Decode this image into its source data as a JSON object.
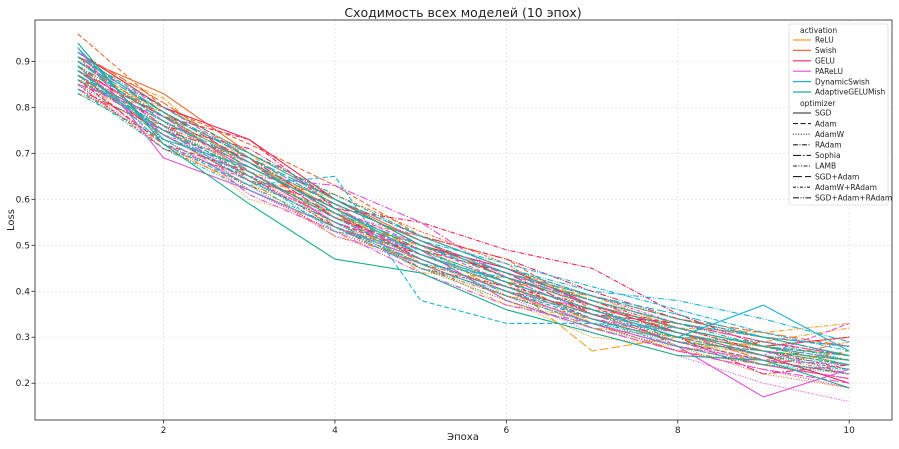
{
  "chart_data": {
    "type": "line",
    "title": "Сходимость всех моделей (10 эпох)",
    "xlabel": "Эпоха",
    "ylabel": "Loss",
    "xlim": [
      0.5,
      10.5
    ],
    "ylim": [
      0.12,
      0.99
    ],
    "xticks": [
      2,
      4,
      6,
      8,
      10
    ],
    "yticks": [
      0.2,
      0.3,
      0.4,
      0.5,
      0.6,
      0.7,
      0.8,
      0.9
    ],
    "grid": true,
    "legend_position": "top-right",
    "x": [
      1,
      2,
      3,
      4,
      5,
      6,
      7,
      8,
      9,
      10
    ],
    "legend": {
      "activation_title": "activation",
      "activations": [
        {
          "name": "ReLU",
          "color": "#f2a12b"
        },
        {
          "name": "Swish",
          "color": "#f26b2e"
        },
        {
          "name": "GELU",
          "color": "#f0285a"
        },
        {
          "name": "PAReLU",
          "color": "#e64fd8"
        },
        {
          "name": "DynamicSwish",
          "color": "#1fb4d6"
        },
        {
          "name": "AdaptiveGELUMish",
          "color": "#1aaf8c"
        }
      ],
      "optimizer_title": "optimizer",
      "optimizers": [
        {
          "name": "SGD",
          "dash": "solid"
        },
        {
          "name": "Adam",
          "dash": "dashed"
        },
        {
          "name": "AdamW",
          "dash": "dotted"
        },
        {
          "name": "RAdam",
          "dash": "dashdot"
        },
        {
          "name": "Sophia",
          "dash": "longdashdot"
        },
        {
          "name": "LAMB",
          "dash": "dashdotdot"
        },
        {
          "name": "SGD+Adam",
          "dash": "longdash"
        },
        {
          "name": "AdamW+RAdam",
          "dash": "dashdotted2"
        },
        {
          "name": "SGD+Adam+RAdam",
          "dash": "dashdotdot2"
        }
      ]
    },
    "series": [
      {
        "activation": "ReLU",
        "optimizer": "SGD",
        "values": [
          0.88,
          0.78,
          0.68,
          0.58,
          0.48,
          0.41,
          0.35,
          0.31,
          0.27,
          0.25
        ]
      },
      {
        "activation": "ReLU",
        "optimizer": "Adam",
        "values": [
          0.86,
          0.8,
          0.7,
          0.56,
          0.52,
          0.45,
          0.38,
          0.33,
          0.3,
          0.28
        ]
      },
      {
        "activation": "ReLU",
        "optimizer": "AdamW",
        "values": [
          0.85,
          0.76,
          0.6,
          0.55,
          0.45,
          0.38,
          0.3,
          0.28,
          0.25,
          0.22
        ]
      },
      {
        "activation": "ReLU",
        "optimizer": "RAdam",
        "values": [
          0.9,
          0.82,
          0.66,
          0.6,
          0.5,
          0.44,
          0.39,
          0.32,
          0.31,
          0.33
        ]
      },
      {
        "activation": "ReLU",
        "optimizer": "Sophia",
        "values": [
          0.87,
          0.74,
          0.64,
          0.52,
          0.47,
          0.4,
          0.32,
          0.3,
          0.28,
          0.24
        ]
      },
      {
        "activation": "ReLU",
        "optimizer": "LAMB",
        "values": [
          0.84,
          0.72,
          0.62,
          0.54,
          0.46,
          0.37,
          0.34,
          0.29,
          0.26,
          0.2
        ]
      },
      {
        "activation": "ReLU",
        "optimizer": "SGD+Adam",
        "values": [
          0.89,
          0.79,
          0.65,
          0.57,
          0.49,
          0.42,
          0.27,
          0.3,
          0.24,
          0.27
        ]
      },
      {
        "activation": "ReLU",
        "optimizer": "AdamW+RAdam",
        "values": [
          0.86,
          0.77,
          0.69,
          0.53,
          0.5,
          0.39,
          0.36,
          0.3,
          0.28,
          0.26
        ]
      },
      {
        "activation": "ReLU",
        "optimizer": "SGD+Adam+RAdam",
        "values": [
          0.88,
          0.75,
          0.67,
          0.58,
          0.44,
          0.43,
          0.33,
          0.27,
          0.29,
          0.32
        ]
      },
      {
        "activation": "Swish",
        "optimizer": "SGD",
        "values": [
          0.91,
          0.83,
          0.7,
          0.6,
          0.51,
          0.43,
          0.37,
          0.32,
          0.28,
          0.3
        ]
      },
      {
        "activation": "Swish",
        "optimizer": "Adam",
        "values": [
          0.96,
          0.8,
          0.72,
          0.63,
          0.52,
          0.47,
          0.36,
          0.33,
          0.3,
          0.26
        ]
      },
      {
        "activation": "Swish",
        "optimizer": "AdamW",
        "values": [
          0.88,
          0.74,
          0.65,
          0.55,
          0.47,
          0.4,
          0.33,
          0.28,
          0.22,
          0.19
        ]
      },
      {
        "activation": "Swish",
        "optimizer": "RAdam",
        "values": [
          0.83,
          0.76,
          0.68,
          0.59,
          0.46,
          0.41,
          0.35,
          0.29,
          0.27,
          0.24
        ]
      },
      {
        "activation": "Swish",
        "optimizer": "Sophia",
        "values": [
          0.9,
          0.78,
          0.66,
          0.56,
          0.5,
          0.44,
          0.38,
          0.31,
          0.25,
          0.29
        ]
      },
      {
        "activation": "Swish",
        "optimizer": "LAMB",
        "values": [
          0.87,
          0.71,
          0.63,
          0.57,
          0.45,
          0.39,
          0.34,
          0.3,
          0.26,
          0.22
        ]
      },
      {
        "activation": "Swish",
        "optimizer": "SGD+Adam",
        "values": [
          0.92,
          0.81,
          0.69,
          0.54,
          0.48,
          0.42,
          0.39,
          0.34,
          0.31,
          0.28
        ]
      },
      {
        "activation": "Swish",
        "optimizer": "AdamW+RAdam",
        "values": [
          0.85,
          0.79,
          0.64,
          0.61,
          0.53,
          0.46,
          0.35,
          0.32,
          0.27,
          0.25
        ]
      },
      {
        "activation": "Swish",
        "optimizer": "SGD+Adam+RAdam",
        "values": [
          0.89,
          0.73,
          0.67,
          0.58,
          0.49,
          0.38,
          0.32,
          0.27,
          0.24,
          0.21
        ]
      },
      {
        "activation": "GELU",
        "optimizer": "SGD",
        "values": [
          0.92,
          0.8,
          0.73,
          0.6,
          0.5,
          0.45,
          0.37,
          0.31,
          0.26,
          0.2
        ]
      },
      {
        "activation": "GELU",
        "optimizer": "Adam",
        "values": [
          0.86,
          0.72,
          0.66,
          0.55,
          0.48,
          0.42,
          0.34,
          0.29,
          0.25,
          0.22
        ]
      },
      {
        "activation": "GELU",
        "optimizer": "AdamW",
        "values": [
          0.9,
          0.77,
          0.62,
          0.53,
          0.46,
          0.39,
          0.33,
          0.27,
          0.23,
          0.19
        ]
      },
      {
        "activation": "GELU",
        "optimizer": "RAdam",
        "values": [
          0.88,
          0.78,
          0.73,
          0.58,
          0.55,
          0.49,
          0.45,
          0.35,
          0.28,
          0.3
        ]
      },
      {
        "activation": "GELU",
        "optimizer": "Sophia",
        "values": [
          0.84,
          0.75,
          0.69,
          0.57,
          0.47,
          0.4,
          0.36,
          0.3,
          0.22,
          0.24
        ]
      },
      {
        "activation": "GELU",
        "optimizer": "LAMB",
        "values": [
          0.87,
          0.74,
          0.64,
          0.59,
          0.51,
          0.43,
          0.38,
          0.32,
          0.27,
          0.23
        ]
      },
      {
        "activation": "GELU",
        "optimizer": "SGD+Adam",
        "values": [
          0.91,
          0.79,
          0.68,
          0.56,
          0.49,
          0.44,
          0.35,
          0.33,
          0.29,
          0.26
        ]
      },
      {
        "activation": "GELU",
        "optimizer": "AdamW+RAdam",
        "values": [
          0.85,
          0.71,
          0.65,
          0.54,
          0.45,
          0.41,
          0.37,
          0.28,
          0.24,
          0.21
        ]
      },
      {
        "activation": "GELU",
        "optimizer": "SGD+Adam+RAdam",
        "values": [
          0.89,
          0.76,
          0.71,
          0.6,
          0.52,
          0.47,
          0.4,
          0.34,
          0.3,
          0.28
        ]
      },
      {
        "activation": "PAReLU",
        "optimizer": "SGD",
        "values": [
          0.93,
          0.69,
          0.62,
          0.54,
          0.47,
          0.4,
          0.33,
          0.28,
          0.17,
          0.23
        ]
      },
      {
        "activation": "PAReLU",
        "optimizer": "Adam",
        "values": [
          0.87,
          0.77,
          0.67,
          0.58,
          0.5,
          0.42,
          0.36,
          0.3,
          0.26,
          0.33
        ]
      },
      {
        "activation": "PAReLU",
        "optimizer": "AdamW",
        "values": [
          0.84,
          0.73,
          0.63,
          0.52,
          0.46,
          0.39,
          0.31,
          0.26,
          0.2,
          0.16
        ]
      },
      {
        "activation": "PAReLU",
        "optimizer": "RAdam",
        "values": [
          0.9,
          0.8,
          0.69,
          0.59,
          0.51,
          0.44,
          0.37,
          0.32,
          0.28,
          0.25
        ]
      },
      {
        "activation": "PAReLU",
        "optimizer": "Sophia",
        "values": [
          0.86,
          0.75,
          0.65,
          0.63,
          0.55,
          0.43,
          0.35,
          0.29,
          0.24,
          0.21
        ]
      },
      {
        "activation": "PAReLU",
        "optimizer": "LAMB",
        "values": [
          0.89,
          0.72,
          0.64,
          0.56,
          0.48,
          0.41,
          0.34,
          0.31,
          0.27,
          0.22
        ]
      },
      {
        "activation": "PAReLU",
        "optimizer": "SGD+Adam",
        "values": [
          0.85,
          0.78,
          0.66,
          0.55,
          0.49,
          0.38,
          0.32,
          0.27,
          0.23,
          0.2
        ]
      },
      {
        "activation": "PAReLU",
        "optimizer": "AdamW+RAdam",
        "values": [
          0.91,
          0.74,
          0.68,
          0.57,
          0.52,
          0.45,
          0.39,
          0.33,
          0.29,
          0.26
        ]
      },
      {
        "activation": "PAReLU",
        "optimizer": "SGD+Adam+RAdam",
        "values": [
          0.88,
          0.76,
          0.61,
          0.53,
          0.44,
          0.37,
          0.33,
          0.28,
          0.25,
          0.24
        ]
      },
      {
        "activation": "DynamicSwish",
        "optimizer": "SGD",
        "values": [
          0.93,
          0.73,
          0.67,
          0.58,
          0.48,
          0.42,
          0.36,
          0.3,
          0.37,
          0.27
        ]
      },
      {
        "activation": "DynamicSwish",
        "optimizer": "Adam",
        "values": [
          0.89,
          0.72,
          0.63,
          0.65,
          0.38,
          0.33,
          0.33,
          0.32,
          0.28,
          0.25
        ]
      },
      {
        "activation": "DynamicSwish",
        "optimizer": "AdamW",
        "values": [
          0.86,
          0.76,
          0.66,
          0.56,
          0.47,
          0.39,
          0.33,
          0.29,
          0.25,
          0.22
        ]
      },
      {
        "activation": "DynamicSwish",
        "optimizer": "RAdam",
        "values": [
          0.91,
          0.79,
          0.69,
          0.59,
          0.51,
          0.46,
          0.41,
          0.36,
          0.31,
          0.27
        ]
      },
      {
        "activation": "DynamicSwish",
        "optimizer": "Sophia",
        "values": [
          0.87,
          0.75,
          0.64,
          0.55,
          0.46,
          0.43,
          0.38,
          0.33,
          0.3,
          0.28
        ]
      },
      {
        "activation": "DynamicSwish",
        "optimizer": "LAMB",
        "values": [
          0.84,
          0.71,
          0.62,
          0.54,
          0.45,
          0.4,
          0.35,
          0.31,
          0.26,
          0.24
        ]
      },
      {
        "activation": "DynamicSwish",
        "optimizer": "SGD+Adam",
        "values": [
          0.9,
          0.77,
          0.68,
          0.57,
          0.5,
          0.44,
          0.39,
          0.35,
          0.3,
          0.26
        ]
      },
      {
        "activation": "DynamicSwish",
        "optimizer": "AdamW+RAdam",
        "values": [
          0.88,
          0.74,
          0.65,
          0.53,
          0.49,
          0.41,
          0.34,
          0.28,
          0.24,
          0.23
        ]
      },
      {
        "activation": "DynamicSwish",
        "optimizer": "SGD+Adam+RAdam",
        "values": [
          0.92,
          0.78,
          0.7,
          0.6,
          0.52,
          0.45,
          0.4,
          0.38,
          0.34,
          0.29
        ]
      },
      {
        "activation": "AdaptiveGELUMish",
        "optimizer": "SGD",
        "values": [
          0.94,
          0.72,
          0.59,
          0.47,
          0.44,
          0.36,
          0.31,
          0.26,
          0.25,
          0.19
        ]
      },
      {
        "activation": "AdaptiveGELUMish",
        "optimizer": "Adam",
        "values": [
          0.88,
          0.75,
          0.66,
          0.56,
          0.47,
          0.4,
          0.34,
          0.29,
          0.27,
          0.24
        ]
      },
      {
        "activation": "AdaptiveGELUMish",
        "optimizer": "AdamW",
        "values": [
          0.85,
          0.74,
          0.64,
          0.55,
          0.45,
          0.38,
          0.32,
          0.28,
          0.24,
          0.22
        ]
      },
      {
        "activation": "AdaptiveGELUMish",
        "optimizer": "RAdam",
        "values": [
          0.91,
          0.8,
          0.7,
          0.61,
          0.52,
          0.45,
          0.39,
          0.34,
          0.3,
          0.26
        ]
      },
      {
        "activation": "AdaptiveGELUMish",
        "optimizer": "Sophia",
        "values": [
          0.87,
          0.77,
          0.67,
          0.58,
          0.49,
          0.42,
          0.36,
          0.31,
          0.27,
          0.25
        ]
      },
      {
        "activation": "AdaptiveGELUMish",
        "optimizer": "LAMB",
        "values": [
          0.83,
          0.73,
          0.63,
          0.54,
          0.46,
          0.39,
          0.33,
          0.3,
          0.26,
          0.23
        ]
      },
      {
        "activation": "AdaptiveGELUMish",
        "optimizer": "SGD+Adam",
        "values": [
          0.9,
          0.79,
          0.69,
          0.6,
          0.5,
          0.43,
          0.37,
          0.32,
          0.28,
          0.26
        ]
      },
      {
        "activation": "AdaptiveGELUMish",
        "optimizer": "AdamW+RAdam",
        "values": [
          0.86,
          0.76,
          0.65,
          0.57,
          0.48,
          0.41,
          0.35,
          0.3,
          0.29,
          0.25
        ]
      },
      {
        "activation": "AdaptiveGELUMish",
        "optimizer": "SGD+Adam+RAdam",
        "values": [
          0.89,
          0.78,
          0.68,
          0.59,
          0.51,
          0.44,
          0.38,
          0.33,
          0.28,
          0.24
        ]
      }
    ]
  }
}
